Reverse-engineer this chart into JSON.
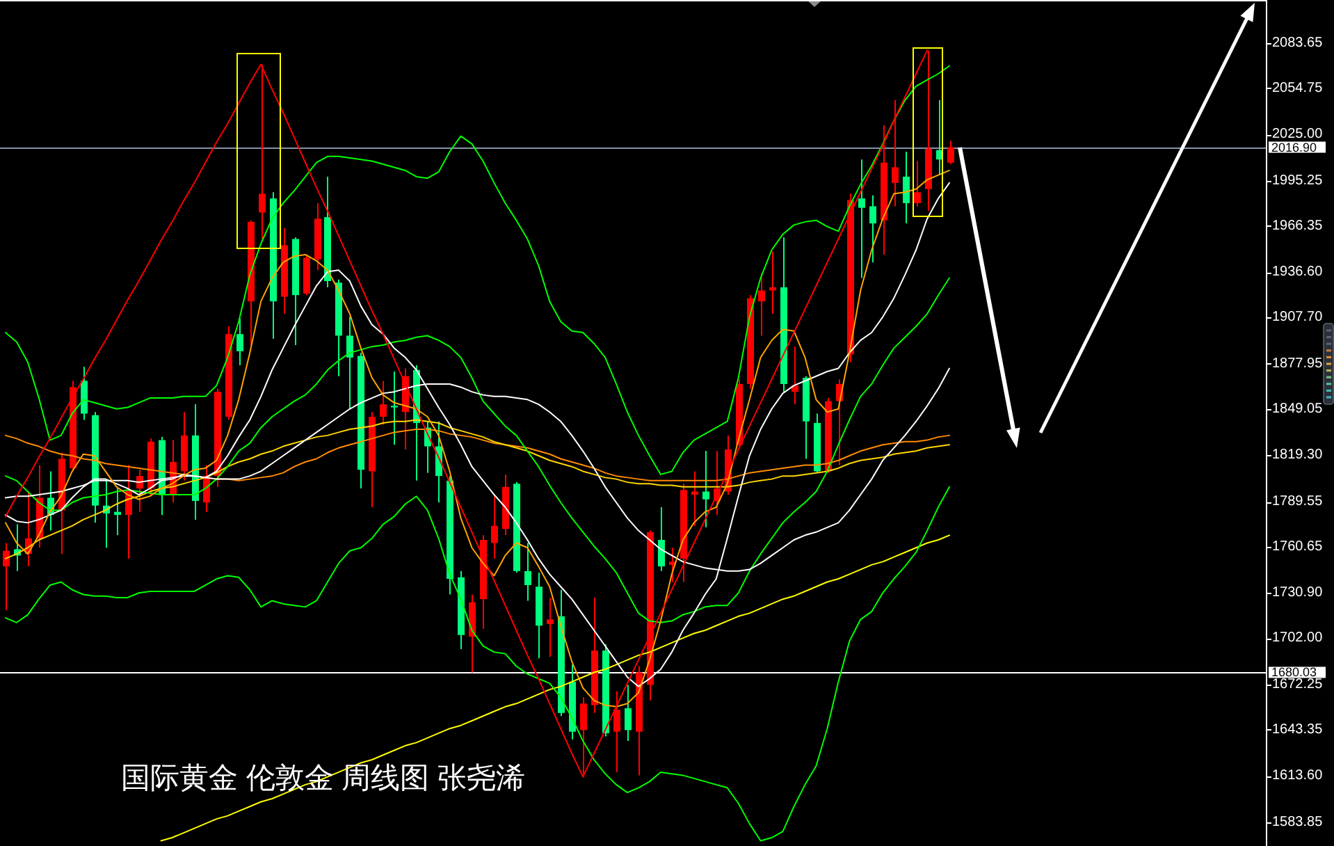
{
  "chart_data": {
    "type": "candlestick",
    "categories": [
      null,
      null,
      null,
      null,
      null,
      null,
      null,
      null,
      null,
      null,
      null,
      null,
      null,
      null,
      null,
      null,
      null,
      null,
      null,
      null,
      null,
      null,
      null,
      null,
      null,
      null,
      null,
      null,
      null,
      null,
      null,
      null,
      null,
      null,
      null,
      null,
      null,
      null,
      null,
      null,
      null,
      null,
      null,
      null,
      null,
      null,
      null,
      null,
      null,
      null,
      null,
      null,
      null,
      null,
      null,
      null,
      null,
      null,
      null,
      null,
      null,
      null,
      null,
      null,
      null,
      null,
      null,
      null,
      null,
      null,
      null,
      null,
      null,
      null,
      null,
      null,
      null,
      null,
      null,
      null,
      null,
      null,
      null,
      null,
      null,
      null
    ],
    "ohlc": [
      [
        1748,
        1763,
        1720,
        1758
      ],
      [
        1759,
        1775,
        1745,
        1755
      ],
      [
        1756,
        1796,
        1748,
        1766
      ],
      [
        1766,
        1813,
        1760,
        1792
      ],
      [
        1792,
        1809,
        1771,
        1781
      ],
      [
        1784,
        1821,
        1756,
        1817
      ],
      [
        1811,
        1867,
        1809,
        1863
      ],
      [
        1867,
        1876,
        1842,
        1846
      ],
      [
        1845,
        1847,
        1776,
        1787
      ],
      [
        1787,
        1804,
        1760,
        1782
      ],
      [
        1783,
        1798,
        1768,
        1781
      ],
      [
        1781,
        1813,
        1753,
        1797
      ],
      [
        1798,
        1810,
        1783,
        1806
      ],
      [
        1798,
        1830,
        1793,
        1828
      ],
      [
        1829,
        1831,
        1781,
        1794
      ],
      [
        1794,
        1829,
        1789,
        1815
      ],
      [
        1809,
        1847,
        1803,
        1832
      ],
      [
        1832,
        1852,
        1778,
        1790
      ],
      [
        1789,
        1813,
        1783,
        1806
      ],
      [
        1806,
        1862,
        1799,
        1860
      ],
      [
        1844,
        1902,
        1842,
        1897
      ],
      [
        1897,
        1907,
        1877,
        1886
      ],
      [
        1918,
        1970,
        1890,
        1969
      ],
      [
        1975,
        2070,
        1958,
        1987
      ],
      [
        1984,
        1988,
        1894,
        1918
      ],
      [
        1921,
        1965,
        1910,
        1954
      ],
      [
        1958,
        1959,
        1890,
        1922
      ],
      [
        1923,
        1948,
        1922,
        1946
      ],
      [
        1945,
        1981,
        1938,
        1971
      ],
      [
        1972,
        1998,
        1927,
        1931
      ],
      [
        1930,
        1932,
        1870,
        1896
      ],
      [
        1896,
        1908,
        1849,
        1882
      ],
      [
        1883,
        1885,
        1798,
        1810
      ],
      [
        1809,
        1847,
        1786,
        1844
      ],
      [
        1844,
        1867,
        1839,
        1852
      ],
      [
        1851,
        1873,
        1826,
        1850
      ],
      [
        1847,
        1875,
        1823,
        1870
      ],
      [
        1874,
        1877,
        1803,
        1840
      ],
      [
        1837,
        1841,
        1808,
        1825
      ],
      [
        1825,
        1841,
        1789,
        1806
      ],
      [
        1803,
        1806,
        1730,
        1740
      ],
      [
        1741,
        1745,
        1695,
        1704
      ],
      [
        1703,
        1730,
        1680,
        1725
      ],
      [
        1727,
        1768,
        1708,
        1765
      ],
      [
        1763,
        1793,
        1753,
        1774
      ],
      [
        1772,
        1807,
        1768,
        1799
      ],
      [
        1801,
        1802,
        1744,
        1745
      ],
      [
        1745,
        1763,
        1726,
        1736
      ],
      [
        1735,
        1744,
        1689,
        1710
      ],
      [
        1711,
        1728,
        1690,
        1714
      ],
      [
        1716,
        1733,
        1652,
        1654
      ],
      [
        1674,
        1685,
        1637,
        1642
      ],
      [
        1643,
        1664,
        1613,
        1660
      ],
      [
        1659,
        1728,
        1654,
        1694
      ],
      [
        1694,
        1698,
        1639,
        1641
      ],
      [
        1642,
        1668,
        1616,
        1656
      ],
      [
        1657,
        1672,
        1636,
        1643
      ],
      [
        1642,
        1684,
        1614,
        1680
      ],
      [
        1672,
        1771,
        1662,
        1770
      ],
      [
        1765,
        1786,
        1745,
        1748
      ],
      [
        1749,
        1760,
        1738,
        1751
      ],
      [
        1753,
        1801,
        1738,
        1797
      ],
      [
        1794,
        1809,
        1774,
        1796
      ],
      [
        1796,
        1822,
        1773,
        1791
      ],
      [
        1790,
        1822,
        1781,
        1798
      ],
      [
        1796,
        1832,
        1794,
        1823
      ],
      [
        1826,
        1868,
        1824,
        1865
      ],
      [
        1865,
        1922,
        1862,
        1920
      ],
      [
        1918,
        1936,
        1896,
        1925
      ],
      [
        1925,
        1950,
        1910,
        1927
      ],
      [
        1927,
        1959,
        1860,
        1865
      ],
      [
        1860,
        1889,
        1852,
        1864
      ],
      [
        1869,
        1870,
        1817,
        1841
      ],
      [
        1840,
        1846,
        1808,
        1809
      ],
      [
        1809,
        1856,
        1808,
        1854
      ],
      [
        1854,
        1868,
        1813,
        1865
      ],
      [
        1884,
        1987,
        1879,
        1983
      ],
      [
        1984,
        2009,
        1933,
        1978
      ],
      [
        1979,
        1986,
        1943,
        1968
      ],
      [
        1970,
        2031,
        1948,
        2007
      ],
      [
        1994,
        2047,
        1979,
        2004
      ],
      [
        1998,
        2014,
        1968,
        1981
      ],
      [
        1981,
        2008,
        1979,
        1988
      ],
      [
        1990,
        2079,
        1976,
        2016
      ],
      [
        2015,
        2047,
        1999,
        2009
      ],
      [
        2007,
        2021,
        2006,
        2016.9
      ]
    ],
    "colors": [
      "#ff0000",
      "#00ff7f",
      "#ff0000",
      "#ff0000",
      "#00ff7f",
      "#ff0000",
      "#ff0000",
      "#00ff7f",
      "#00ff7f",
      "#00ff7f",
      "#00ff7f",
      "#ff0000",
      "#ff0000",
      "#ff0000",
      "#00ff7f",
      "#ff0000",
      "#ff0000",
      "#00ff7f",
      "#ff0000",
      "#ff0000",
      "#ff0000",
      "#00ff7f",
      "#ff0000",
      "#ff0000",
      "#00ff7f",
      "#ff0000",
      "#00ff7f",
      "#ff0000",
      "#ff0000",
      "#00ff7f",
      "#00ff7f",
      "#00ff7f",
      "#00ff7f",
      "#ff0000",
      "#ff0000",
      "#00ff7f",
      "#ff0000",
      "#00ff7f",
      "#00ff7f",
      "#00ff7f",
      "#00ff7f",
      "#00ff7f",
      "#ff0000",
      "#ff0000",
      "#ff0000",
      "#ff0000",
      "#00ff7f",
      "#00ff7f",
      "#00ff7f",
      "#ff0000",
      "#00ff7f",
      "#00ff7f",
      "#ff0000",
      "#ff0000",
      "#00ff7f",
      "#ff0000",
      "#00ff7f",
      "#ff0000",
      "#ff0000",
      "#00ff7f",
      "#ff0000",
      "#ff0000",
      "#ff0000",
      "#00ff7f",
      "#ff0000",
      "#ff0000",
      "#ff0000",
      "#ff0000",
      "#ff0000",
      "#ff0000",
      "#00ff7f",
      "#ff0000",
      "#00ff7f",
      "#00ff7f",
      "#ff0000",
      "#ff0000",
      "#ff0000",
      "#00ff7f",
      "#00ff7f",
      "#ff0000",
      "#ff0000",
      "#00ff7f",
      "#ff0000",
      "#ff0000",
      "#00ff7f",
      "#ff0000"
    ],
    "series": [
      {
        "type": "line",
        "color": "#ffff00",
        "values": [
          null,
          null,
          null,
          null,
          null,
          null,
          null,
          null,
          null,
          null,
          null,
          null,
          null,
          null,
          1572,
          1574,
          1577,
          1580,
          1583,
          1586,
          1588,
          1591,
          1594,
          1597,
          1599,
          1602,
          1605,
          1608,
          1610,
          1613,
          1616,
          1619,
          1622,
          1624,
          1627,
          1630,
          1633,
          1635,
          1638,
          1641,
          1644,
          1646,
          1649,
          1652,
          1655,
          1658,
          1660,
          1663,
          1666,
          1669,
          1671,
          1674,
          1677,
          1680,
          1682,
          1685,
          1688,
          1691,
          1693,
          1696,
          1699,
          1702,
          1705,
          1707,
          1710,
          1713,
          1716,
          1718,
          1721,
          1724,
          1727,
          1729,
          1732,
          1735,
          1738,
          1740,
          1743,
          1746,
          1749,
          1751,
          1754,
          1757,
          1760,
          1763,
          1765,
          1768
        ]
      },
      {
        "type": "line",
        "color": "#ff8c00",
        "values": [
          1832,
          1830,
          1827,
          1825,
          1822,
          1820,
          1819,
          1817,
          1816,
          1814,
          1813,
          1812,
          1811,
          1810,
          1809,
          1808,
          1807,
          1806,
          1805,
          1804,
          1804,
          1803,
          1804,
          1805,
          1806,
          1808,
          1812,
          1815,
          1817,
          1821,
          1824,
          1826,
          1828,
          1830,
          1832,
          1834,
          1835,
          1836,
          1836,
          1835,
          1833,
          1832,
          1831,
          1829,
          1827,
          1826,
          1825,
          1824,
          1822,
          1820,
          1817,
          1815,
          1813,
          1811,
          1808,
          1806,
          1805,
          1804,
          1803,
          1803,
          1803,
          1803,
          1803,
          1803,
          1803,
          1804,
          1806,
          1808,
          1809,
          1810,
          1811,
          1812,
          1813,
          1813,
          1814,
          1816,
          1819,
          1822,
          1824,
          1826,
          1827,
          1828,
          1828,
          1829,
          1831,
          1832
        ]
      },
      {
        "type": "line",
        "color": "#ffd700",
        "values": [
          1753,
          1756,
          1760,
          1765,
          1768,
          1771,
          1774,
          1778,
          1781,
          1784,
          1788,
          1791,
          1793,
          1796,
          1798,
          1799,
          1801,
          1803,
          1805,
          1808,
          1812,
          1815,
          1817,
          1820,
          1822,
          1825,
          1827,
          1829,
          1831,
          1832,
          1834,
          1836,
          1837,
          1838,
          1840,
          1841,
          1841,
          1842,
          1841,
          1840,
          1837,
          1835,
          1833,
          1831,
          1828,
          1826,
          1824,
          1822,
          1819,
          1816,
          1814,
          1812,
          1809,
          1807,
          1805,
          1804,
          1802,
          1801,
          1801,
          1800,
          1800,
          1799,
          1799,
          1799,
          1799,
          1799,
          1800,
          1802,
          1803,
          1804,
          1806,
          1806,
          1807,
          1808,
          1809,
          1811,
          1814,
          1816,
          1817,
          1818,
          1820,
          1821,
          1822,
          1824,
          1825,
          1826
        ]
      },
      {
        "type": "line",
        "color": "#00ff00",
        "values": [
          1898,
          1892,
          1879,
          1856,
          1829,
          1832,
          1846,
          1855,
          1853,
          1851,
          1849,
          1850,
          1853,
          1856,
          1856,
          1856,
          1857,
          1857,
          1857,
          1864,
          1882,
          1905,
          1935,
          1955,
          1971,
          1981,
          1989,
          1998,
          2007,
          2011,
          2011,
          2010,
          2009,
          2008,
          2006,
          2004,
          2002,
          1998,
          1997,
          2001,
          2014,
          2024,
          2019,
          2008,
          1994,
          1981,
          1970,
          1958,
          1941,
          1918,
          1905,
          1899,
          1898,
          1891,
          1882,
          1865,
          1847,
          1832,
          1819,
          1807,
          1809,
          1821,
          1829,
          1833,
          1837,
          1841,
          1869,
          1908,
          1933,
          1951,
          1961,
          1967,
          1969,
          1970,
          1966,
          1963,
          1979,
          1993,
          2005,
          2019,
          2034,
          2047,
          2056,
          2060,
          2064,
          2069
        ]
      },
      {
        "type": "line",
        "color": "#00ff00",
        "values": [
          1806,
          1803,
          1796,
          1789,
          1784,
          1784,
          1789,
          1792,
          1793,
          1794,
          1796,
          1797,
          1796,
          1795,
          1794,
          1794,
          1794,
          1794,
          1798,
          1804,
          1812,
          1822,
          1827,
          1837,
          1844,
          1849,
          1854,
          1858,
          1865,
          1874,
          1880,
          1885,
          1887,
          1889,
          1890,
          1892,
          1893,
          1895,
          1896,
          1893,
          1889,
          1882,
          1869,
          1854,
          1846,
          1838,
          1832,
          1822,
          1812,
          1800,
          1789,
          1779,
          1770,
          1761,
          1753,
          1744,
          1731,
          1718,
          1713,
          1712,
          1713,
          1717,
          1719,
          1722,
          1723,
          1723,
          1731,
          1745,
          1756,
          1766,
          1776,
          1783,
          1789,
          1796,
          1809,
          1826,
          1842,
          1857,
          1865,
          1877,
          1888,
          1895,
          1902,
          1910,
          1922,
          1933
        ]
      },
      {
        "type": "line",
        "color": "#00ff00",
        "values": [
          1715,
          1712,
          1717,
          1727,
          1736,
          1738,
          1733,
          1730,
          1729,
          1729,
          1728,
          1728,
          1731,
          1732,
          1732,
          1732,
          1732,
          1732,
          1736,
          1740,
          1742,
          1741,
          1733,
          1722,
          1726,
          1724,
          1723,
          1722,
          1726,
          1738,
          1750,
          1758,
          1760,
          1766,
          1775,
          1780,
          1788,
          1793,
          1784,
          1766,
          1743,
          1727,
          1707,
          1697,
          1693,
          1692,
          1684,
          1679,
          1676,
          1673,
          1664,
          1651,
          1636,
          1624,
          1615,
          1608,
          1603,
          1606,
          1610,
          1616,
          1615,
          1614,
          1612,
          1610,
          1608,
          1606,
          1596,
          1583,
          1572,
          1574,
          1578,
          1594,
          1608,
          1620,
          1644,
          1674,
          1700,
          1714,
          1719,
          1731,
          1740,
          1748,
          1757,
          1771,
          1786,
          1799
        ]
      },
      {
        "type": "line",
        "color": "#ffffff",
        "values": [
          1792,
          1793,
          1793,
          1794,
          1795,
          1796,
          1798,
          1800,
          1803,
          1803,
          1803,
          1803,
          1802,
          1803,
          1804,
          1805,
          1806,
          1806,
          1805,
          1804,
          1804,
          1804,
          1806,
          1809,
          1814,
          1819,
          1824,
          1829,
          1834,
          1839,
          1844,
          1849,
          1853,
          1856,
          1859,
          1860,
          1862,
          1864,
          1865,
          1865,
          1865,
          1863,
          1860,
          1858,
          1857,
          1857,
          1856,
          1855,
          1852,
          1847,
          1841,
          1832,
          1822,
          1811,
          1799,
          1789,
          1779,
          1771,
          1765,
          1759,
          1755,
          1751,
          1749,
          1747,
          1746,
          1745,
          1745,
          1746,
          1750,
          1755,
          1760,
          1765,
          1768,
          1770,
          1773,
          1776,
          1784,
          1794,
          1804,
          1816,
          1824,
          1832,
          1841,
          1851,
          1862,
          1875
        ]
      },
      {
        "type": "line",
        "color": "#ffffff",
        "values": [
          1781,
          1777,
          1776,
          1778,
          1781,
          1784,
          1792,
          1799,
          1804,
          1804,
          1801,
          1798,
          1794,
          1798,
          1803,
          1804,
          1807,
          1806,
          1805,
          1809,
          1819,
          1831,
          1842,
          1857,
          1874,
          1888,
          1902,
          1915,
          1928,
          1937,
          1938,
          1931,
          1915,
          1903,
          1897,
          1888,
          1882,
          1874,
          1862,
          1850,
          1839,
          1826,
          1812,
          1803,
          1794,
          1786,
          1776,
          1765,
          1753,
          1743,
          1735,
          1727,
          1717,
          1707,
          1697,
          1687,
          1677,
          1671,
          1676,
          1682,
          1693,
          1707,
          1718,
          1730,
          1740,
          1766,
          1793,
          1819,
          1836,
          1849,
          1859,
          1864,
          1867,
          1870,
          1873,
          1875,
          1885,
          1893,
          1898,
          1908,
          1920,
          1935,
          1951,
          1971,
          1984,
          1994
        ]
      },
      {
        "type": "line",
        "color": "#ffa500",
        "values": [
          1776,
          1763,
          1756,
          1768,
          1783,
          1793,
          1809,
          1820,
          1819,
          1809,
          1799,
          1794,
          1791,
          1793,
          1798,
          1801,
          1806,
          1810,
          1811,
          1816,
          1832,
          1855,
          1885,
          1918,
          1933,
          1943,
          1947,
          1948,
          1944,
          1938,
          1925,
          1910,
          1888,
          1869,
          1858,
          1853,
          1851,
          1849,
          1844,
          1832,
          1809,
          1779,
          1760,
          1750,
          1742,
          1755,
          1763,
          1760,
          1748,
          1735,
          1710,
          1687,
          1670,
          1662,
          1659,
          1658,
          1660,
          1667,
          1688,
          1713,
          1743,
          1765,
          1776,
          1783,
          1786,
          1801,
          1829,
          1855,
          1882,
          1893,
          1900,
          1899,
          1882,
          1855,
          1847,
          1849,
          1885,
          1925,
          1951,
          1971,
          1987,
          1988,
          1990,
          1996,
          1999,
          2002
        ]
      },
      {
        "type": "line",
        "color": "#ff0000",
        "values": [
          1780,
          1793,
          1805,
          1818,
          1830,
          1843,
          1856,
          1868,
          1881,
          1893,
          1906,
          1919,
          1931,
          1944,
          1957,
          1969,
          1982,
          1994,
          2007,
          2020,
          2032,
          2045,
          2058,
          2070,
          2054,
          2039,
          2023,
          2007,
          1991,
          1976,
          1960,
          1944,
          1928,
          1912,
          1897,
          1881,
          1865,
          1849,
          1833,
          1818,
          1802,
          1786,
          1770,
          1754,
          1739,
          1723,
          1707,
          1691,
          1676,
          1660,
          1644,
          1628,
          1613,
          1628,
          1643,
          1658,
          1673,
          1688,
          1703,
          1718,
          1733,
          1748,
          1763,
          1778,
          1793,
          1808,
          1823,
          1838,
          1853,
          1868,
          1883,
          1898,
          1913,
          1928,
          1943,
          1958,
          1973,
          1988,
          2003,
          2018,
          2034,
          2049,
          2064,
          2079,
          null,
          null
        ]
      }
    ],
    "ylim": [
      1570,
      2111.3
    ],
    "yticks": [
      2083.65,
      2054.75,
      {
        "value": 2025,
        "label": "2025.00"
      },
      1995.25,
      1966.35,
      {
        "value": 1936.6,
        "label": "1936.60"
      },
      {
        "value": 1907.7,
        "label": "1907.70"
      },
      1877.95,
      1849.05,
      {
        "value": 1819.3,
        "label": "1819.30"
      },
      1789.55,
      1760.65,
      {
        "value": 1730.9,
        "label": "1730.90"
      },
      {
        "value": 1702,
        "label": "1702.00"
      },
      1672.25,
      1643.35,
      {
        "value": 1613.6,
        "label": "1613.60"
      },
      1583.85
    ],
    "ref_lines": [
      {
        "axis": "y",
        "value": 2016.9,
        "label": "2016.90",
        "color": "#8392a8"
      },
      {
        "axis": "y",
        "value": 1680.03,
        "label": "1680.03",
        "color": "#ffffff"
      }
    ],
    "annotations": [
      "国际黄金 伦敦金 周线图 张尧浠"
    ],
    "tick_labels": "y"
  }
}
